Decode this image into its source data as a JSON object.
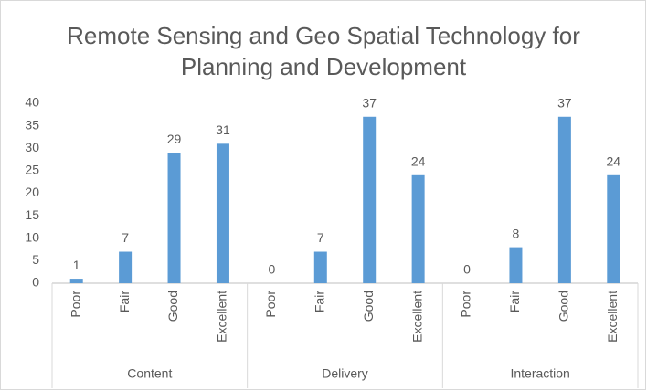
{
  "chart_data": {
    "type": "bar",
    "title": "Remote Sensing and Geo Spatial Technology for Planning and Development",
    "color": "#5b9bd5",
    "ylim": [
      0,
      40
    ],
    "yticks": [
      0,
      5,
      10,
      15,
      20,
      25,
      30,
      35,
      40
    ],
    "groups": [
      {
        "name": "Content",
        "categories": [
          "Poor",
          "Fair",
          "Good",
          "Excellent"
        ],
        "values": [
          1,
          7,
          29,
          31
        ]
      },
      {
        "name": "Delivery",
        "categories": [
          "Poor",
          "Fair",
          "Good",
          "Excellent"
        ],
        "values": [
          0,
          7,
          37,
          24
        ]
      },
      {
        "name": "Interaction",
        "categories": [
          "Poor",
          "Fair",
          "Good",
          "Excellent"
        ],
        "values": [
          0,
          8,
          37,
          24
        ]
      }
    ]
  }
}
